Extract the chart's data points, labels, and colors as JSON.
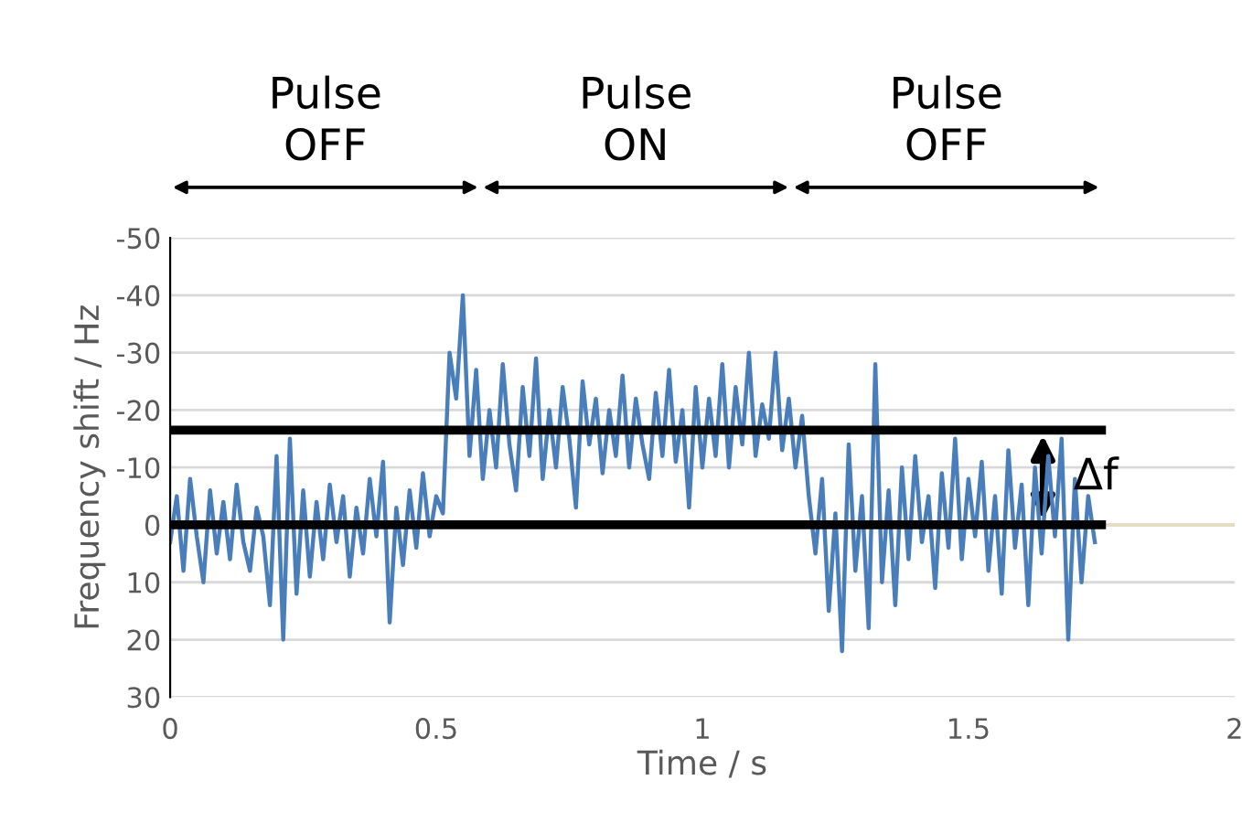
{
  "chart_data": {
    "type": "line",
    "xlabel": "Time / s",
    "ylabel": "Frequency shift / Hz",
    "xlim": [
      0,
      2
    ],
    "xticks": [
      0,
      0.5,
      1,
      1.5,
      2
    ],
    "ylim": [
      30,
      -50
    ],
    "yticks": [
      -50,
      -40,
      -30,
      -20,
      -10,
      0,
      10,
      20,
      30
    ],
    "grid": "y",
    "series": [
      {
        "color": "#4a7ebb",
        "x": [
          0,
          0.0125,
          0.025,
          0.0375,
          0.05,
          0.0625,
          0.075,
          0.0875,
          0.1,
          0.1125,
          0.125,
          0.1375,
          0.15,
          0.1625,
          0.175,
          0.1875,
          0.2,
          0.2125,
          0.225,
          0.2375,
          0.25,
          0.2625,
          0.275,
          0.2875,
          0.3,
          0.3125,
          0.325,
          0.3375,
          0.35,
          0.3625,
          0.375,
          0.3875,
          0.4,
          0.4125,
          0.425,
          0.4375,
          0.45,
          0.4625,
          0.475,
          0.4875,
          0.5,
          0.5125,
          0.525,
          0.5375,
          0.55,
          0.5625,
          0.575,
          0.5875,
          0.6,
          0.6125,
          0.625,
          0.6375,
          0.65,
          0.6625,
          0.675,
          0.6875,
          0.7,
          0.7125,
          0.725,
          0.7375,
          0.75,
          0.7625,
          0.775,
          0.7875,
          0.8,
          0.8125,
          0.825,
          0.8375,
          0.85,
          0.8625,
          0.875,
          0.8875,
          0.9,
          0.9125,
          0.925,
          0.9375,
          0.95,
          0.9625,
          0.975,
          0.9875,
          1,
          1.0125,
          1.025,
          1.0375,
          1.05,
          1.0625,
          1.075,
          1.0875,
          1.1,
          1.1125,
          1.125,
          1.1375,
          1.15,
          1.1625,
          1.175,
          1.1875,
          1.2,
          1.2125,
          1.225,
          1.2375,
          1.25,
          1.2625,
          1.275,
          1.2875,
          1.3,
          1.3125,
          1.325,
          1.3375,
          1.35,
          1.3625,
          1.375,
          1.3875,
          1.4,
          1.4125,
          1.425,
          1.4375,
          1.45,
          1.4625,
          1.475,
          1.4875,
          1.5,
          1.5125,
          1.525,
          1.5375,
          1.55,
          1.5625,
          1.575,
          1.5875,
          1.6,
          1.6125,
          1.625,
          1.6375,
          1.65,
          1.6625,
          1.675,
          1.6875,
          1.7,
          1.7125,
          1.725,
          1.7375
        ],
        "values": [
          3,
          -5,
          8,
          -8,
          2,
          10,
          -6,
          5,
          -4,
          6,
          -7,
          3,
          8,
          -3,
          2,
          14,
          -12,
          20,
          -15,
          12,
          -6,
          9,
          -4,
          6,
          -7,
          3,
          -5,
          9,
          -3,
          5,
          -8,
          2,
          -11,
          17,
          -3,
          7,
          -6,
          4,
          -9,
          2,
          -5,
          -2,
          -30,
          -22,
          -40,
          -12,
          -27,
          -8,
          -20,
          -10,
          -28,
          -14,
          -6,
          -24,
          -12,
          -29,
          -8,
          -20,
          -10,
          -24,
          -15,
          -3,
          -25,
          -14,
          -22,
          -9,
          -20,
          -12,
          -26,
          -10,
          -22,
          -14,
          -8,
          -23,
          -12,
          -27,
          -11,
          -20,
          -3,
          -24,
          -10,
          -22,
          -12,
          -28,
          -10,
          -24,
          -14,
          -30,
          -12,
          -21,
          -15,
          -30,
          -13,
          -22,
          -10,
          -19,
          -5,
          5,
          -8,
          15,
          -2,
          22,
          -14,
          8,
          -5,
          18,
          -28,
          10,
          -6,
          14,
          -10,
          6,
          -12,
          3,
          -5,
          11,
          -9,
          4,
          -15,
          6,
          -8,
          2,
          -11,
          8,
          -5,
          12,
          -13,
          4,
          -7,
          14,
          -10,
          5,
          -12,
          2,
          -15,
          20,
          -8,
          10,
          -5,
          3
        ]
      },
      {
        "color": "#000000",
        "x": [
          0,
          1.75
        ],
        "values": [
          0,
          0
        ]
      },
      {
        "color": "#000000",
        "x": [
          0,
          1.75
        ],
        "values": [
          -16.5,
          -16.5
        ]
      }
    ],
    "ref_lines": [
      {
        "axis": "y",
        "value": 0,
        "color": "#e6dcc3"
      }
    ],
    "annotations": [
      "Pulse\nOFF",
      "Pulse\nON",
      "Pulse\nOFF",
      {
        "text": "Δf",
        "x": 1.64,
        "y": -8.25
      }
    ]
  }
}
